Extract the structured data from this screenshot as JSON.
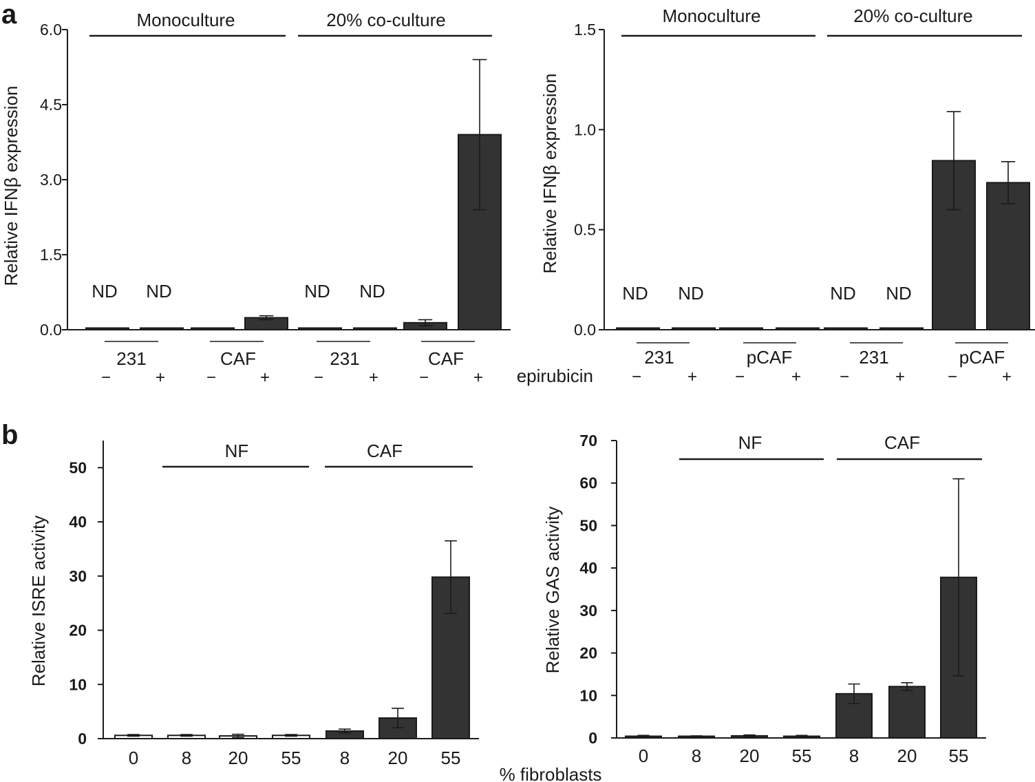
{
  "panel_labels": {
    "a": "a",
    "b": "b"
  },
  "colors": {
    "bar": "#333333",
    "axis": "#1a1a1a",
    "text": "#1a1a1a",
    "white_bar": "#ffffff"
  },
  "chart_data": [
    {
      "id": "a_left",
      "type": "bar",
      "title": "",
      "ylabel": "Relative IFNβ expression",
      "ylim": [
        0,
        6
      ],
      "yticks": [
        "0.0",
        "1.5",
        "3.0",
        "4.5",
        "6.0"
      ],
      "tick_values": [
        0,
        1.5,
        3,
        4.5,
        6
      ],
      "categories": [
        "231 −",
        "231 +",
        "CAF −",
        "CAF +",
        "231 −",
        "231 +",
        "CAF −",
        "CAF +"
      ],
      "values": [
        0,
        0,
        0.02,
        0.24,
        0,
        0,
        0.14,
        3.9
      ],
      "err": [
        0,
        0,
        0,
        0.04,
        0,
        0,
        0.06,
        1.5
      ],
      "nd": [
        true,
        true,
        false,
        false,
        true,
        true,
        false,
        false
      ],
      "nd_label": "ND",
      "subgroups": [
        "231",
        "CAF",
        "231",
        "CAF"
      ],
      "signs": [
        "−",
        "+",
        "−",
        "+",
        "−",
        "+",
        "−",
        "+"
      ],
      "groups": [
        "Monoculture",
        "20% co-culture"
      ]
    },
    {
      "id": "a_right",
      "type": "bar",
      "title": "",
      "ylabel": "Relative IFNβ expression",
      "ylim": [
        0,
        1.5
      ],
      "yticks": [
        "0.0",
        "0.5",
        "1.0",
        "1.5"
      ],
      "tick_values": [
        0,
        0.5,
        1.0,
        1.5
      ],
      "categories": [
        "231 −",
        "231 +",
        "pCAF −",
        "pCAF +",
        "231 −",
        "231 +",
        "pCAF −",
        "pCAF +"
      ],
      "values": [
        0,
        0,
        0.006,
        0.004,
        0,
        0,
        0.845,
        0.735
      ],
      "err": [
        0,
        0,
        0,
        0,
        0,
        0,
        0.245,
        0.105
      ],
      "nd": [
        true,
        true,
        false,
        false,
        true,
        true,
        false,
        false
      ],
      "nd_label": "ND",
      "subgroups": [
        "231",
        "pCAF",
        "231",
        "pCAF"
      ],
      "signs": [
        "−",
        "+",
        "−",
        "+",
        "−",
        "+",
        "−",
        "+"
      ],
      "groups": [
        "Monoculture",
        "20% co-culture"
      ],
      "treatment_label": "epirubicin"
    },
    {
      "id": "b_left",
      "type": "bar",
      "title": "",
      "ylabel": "Relative ISRE activity",
      "ylim": [
        0,
        55
      ],
      "yticks": [
        "0",
        "10",
        "20",
        "30",
        "40",
        "50"
      ],
      "tick_values": [
        0,
        10,
        20,
        30,
        40,
        50
      ],
      "categories": [
        "0",
        "8",
        "20",
        "55",
        "8",
        "20",
        "55"
      ],
      "values": [
        0.6,
        0.6,
        0.5,
        0.6,
        1.4,
        3.8,
        29.8
      ],
      "err": [
        0.15,
        0.15,
        0.3,
        0.15,
        0.35,
        1.8,
        6.7
      ],
      "white": [
        true,
        true,
        true,
        true,
        false,
        false,
        false
      ],
      "groups": [
        "NF",
        "CAF"
      ]
    },
    {
      "id": "b_right",
      "type": "bar",
      "title": "",
      "ylabel": "Relative GAS activity",
      "ylim": [
        0,
        70
      ],
      "yticks": [
        "0",
        "10",
        "20",
        "30",
        "40",
        "50",
        "60",
        "70"
      ],
      "tick_values": [
        0,
        10,
        20,
        30,
        40,
        50,
        60,
        70
      ],
      "categories": [
        "0",
        "8",
        "20",
        "55",
        "8",
        "20",
        "55"
      ],
      "values": [
        0.4,
        0.3,
        0.5,
        0.4,
        10.4,
        12.1,
        37.8
      ],
      "err": [
        0.2,
        0.2,
        0.2,
        0.2,
        2.3,
        0.9,
        23.2
      ],
      "white": [
        false,
        false,
        false,
        false,
        false,
        false,
        false
      ],
      "groups": [
        "NF",
        "CAF"
      ],
      "xlabel": "% fibroblasts"
    }
  ]
}
